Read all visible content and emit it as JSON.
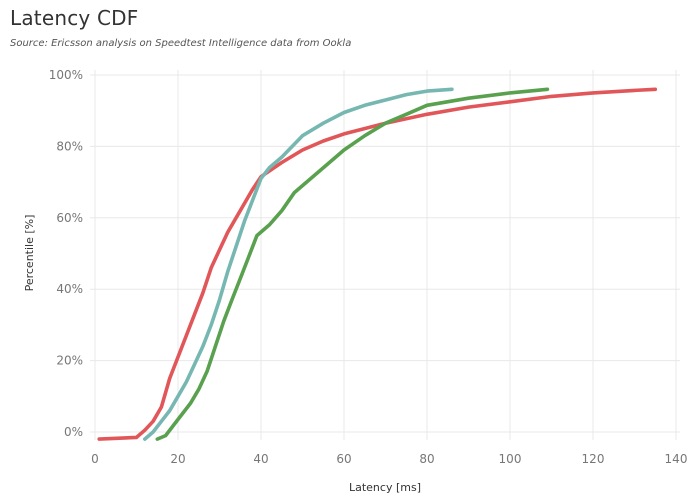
{
  "title": "Latency CDF",
  "subtitle": "Source: Ericsson analysis on Speedtest Intelligence data from Ookla",
  "chart_data": {
    "type": "line",
    "title": "Latency CDF",
    "subtitle": "Source: Ericsson analysis on Speedtest Intelligence data from Ookla",
    "xlabel": "Latency [ms]",
    "ylabel": "Percentile [%]",
    "xlim": [
      0,
      140
    ],
    "ylim": [
      0,
      100
    ],
    "xticks": [
      0,
      20,
      40,
      60,
      80,
      100,
      120,
      140
    ],
    "yticks": [
      0,
      20,
      40,
      60,
      80,
      100
    ],
    "ytick_labels": [
      "0%",
      "20%",
      "40%",
      "60%",
      "80%",
      "100%"
    ],
    "grid": true,
    "legend": "none",
    "series": [
      {
        "color": "#e15759",
        "points": [
          [
            1,
            -2
          ],
          [
            10,
            -1.5
          ],
          [
            12,
            0.5
          ],
          [
            14,
            3
          ],
          [
            16,
            7
          ],
          [
            18,
            15
          ],
          [
            20,
            21
          ],
          [
            22,
            27
          ],
          [
            24,
            33
          ],
          [
            26,
            39
          ],
          [
            28,
            46
          ],
          [
            30,
            51
          ],
          [
            32,
            56
          ],
          [
            34,
            60
          ],
          [
            36,
            64
          ],
          [
            38,
            68
          ],
          [
            40,
            71.5
          ],
          [
            45,
            75.5
          ],
          [
            50,
            79
          ],
          [
            55,
            81.5
          ],
          [
            60,
            83.5
          ],
          [
            70,
            86.5
          ],
          [
            80,
            89
          ],
          [
            90,
            91
          ],
          [
            100,
            92.5
          ],
          [
            110,
            94
          ],
          [
            120,
            95
          ],
          [
            130,
            95.7
          ],
          [
            135,
            96
          ]
        ]
      },
      {
        "color": "#76b7b2",
        "points": [
          [
            12,
            -2
          ],
          [
            14,
            0
          ],
          [
            16,
            3
          ],
          [
            18,
            6
          ],
          [
            20,
            10
          ],
          [
            22,
            14
          ],
          [
            24,
            19
          ],
          [
            26,
            24
          ],
          [
            28,
            30
          ],
          [
            30,
            37
          ],
          [
            32,
            45
          ],
          [
            34,
            52
          ],
          [
            36,
            59
          ],
          [
            38,
            65
          ],
          [
            40,
            71
          ],
          [
            42,
            74
          ],
          [
            45,
            77
          ],
          [
            50,
            83
          ],
          [
            55,
            86.5
          ],
          [
            60,
            89.5
          ],
          [
            65,
            91.5
          ],
          [
            70,
            93
          ],
          [
            75,
            94.5
          ],
          [
            80,
            95.5
          ],
          [
            86,
            96
          ]
        ]
      },
      {
        "color": "#59a14f",
        "points": [
          [
            15,
            -2
          ],
          [
            17,
            -1
          ],
          [
            19,
            2
          ],
          [
            21,
            5
          ],
          [
            23,
            8
          ],
          [
            25,
            12
          ],
          [
            27,
            17
          ],
          [
            29,
            24
          ],
          [
            31,
            31
          ],
          [
            33,
            37
          ],
          [
            35,
            43
          ],
          [
            37,
            49
          ],
          [
            39,
            55
          ],
          [
            42,
            58
          ],
          [
            45,
            62
          ],
          [
            48,
            67
          ],
          [
            52,
            71
          ],
          [
            56,
            75
          ],
          [
            60,
            79
          ],
          [
            65,
            83
          ],
          [
            70,
            86.5
          ],
          [
            75,
            89
          ],
          [
            80,
            91.5
          ],
          [
            90,
            93.5
          ],
          [
            100,
            95
          ],
          [
            109,
            96
          ]
        ]
      }
    ]
  }
}
